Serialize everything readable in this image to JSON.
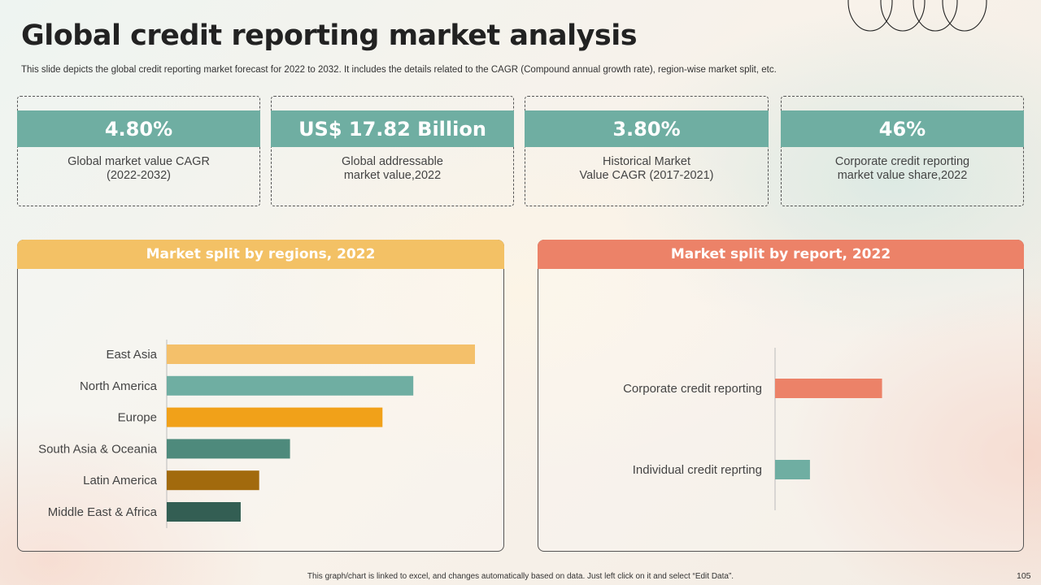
{
  "title": "Global credit reporting market analysis",
  "subtitle": "This slide depicts the global credit reporting market forecast for 2022 to 2032. It includes the details related to the CAGR (Compound annual growth rate), region-wise market split, etc.",
  "stats": [
    {
      "value": "4.80%",
      "label": "Global market value CAGR\n(2022-2032)"
    },
    {
      "value": "US$ 17.82 Billion",
      "label": "Global addressable\nmarket value,2022"
    },
    {
      "value": "3.80%",
      "label": "Historical Market\nValue CAGR (2017-2021)"
    },
    {
      "value": "46%",
      "label": "Corporate credit reporting\nmarket value share,2022"
    }
  ],
  "chart_data": [
    {
      "type": "bar",
      "orientation": "horizontal",
      "title": "Market split by regions, 2022",
      "header_color": "#f3c165",
      "categories": [
        "East Asia",
        "North America",
        "Europe",
        "South Asia & Oceania",
        "Latin America",
        "Middle East & Africa"
      ],
      "values": [
        100,
        80,
        70,
        40,
        30,
        24
      ],
      "colors": [
        "#f4c06a",
        "#6faea2",
        "#f1a119",
        "#4e8a7c",
        "#a26a0d",
        "#335e53"
      ],
      "xlim": [
        0,
        100
      ],
      "grid": false
    },
    {
      "type": "bar",
      "orientation": "horizontal",
      "title": "Market split by report, 2022",
      "header_color": "#ec8268",
      "categories": [
        "Corporate credit reporting",
        "Individual credit reprting"
      ],
      "values": [
        46,
        15
      ],
      "colors": [
        "#ec8268",
        "#6faea2"
      ],
      "xlim": [
        0,
        100
      ],
      "grid": false
    }
  ],
  "footnote": "This graph/chart is linked to excel, and changes automatically based on data. Just left click on it and select “Edit Data”.",
  "page_number": "105"
}
